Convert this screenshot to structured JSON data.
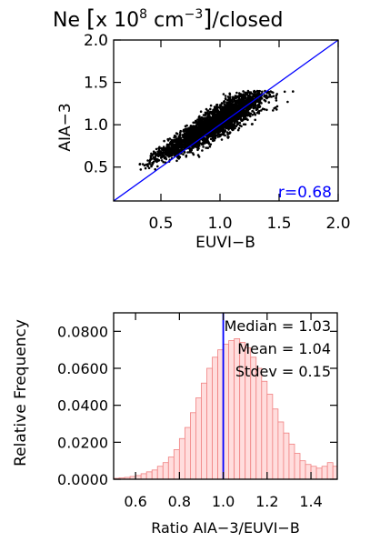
{
  "chart_data": [
    {
      "type": "scatter",
      "title": {
        "prefix": "Ne ",
        "bracket_left": "[",
        "unit": "x 10",
        "exp": "8",
        "unit2": " cm",
        "exp2": "−3",
        "bracket_right": "]",
        "suffix": "/closed"
      },
      "xlabel": "EUVI−B",
      "ylabel": "AIA−3",
      "xlim": [
        0.1,
        2.0
      ],
      "ylim": [
        0.1,
        2.0
      ],
      "xticks": [
        "0.5",
        "1.0",
        "1.5",
        "2.0"
      ],
      "xtick_values": [
        0.5,
        1.0,
        1.5,
        2.0
      ],
      "yticks": [
        "0.5",
        "1.0",
        "1.5",
        "2.0"
      ],
      "ytick_values": [
        0.5,
        1.0,
        1.5,
        2.0
      ],
      "annotation": "r=0.68",
      "reference_line": "y=x",
      "cloud": {
        "x_mean": 0.95,
        "x_std": 0.22,
        "correlation": 0.68,
        "ratio_mean": 1.04,
        "ratio_std": 0.15,
        "y_max": 1.4
      },
      "colors": {
        "points": "#000000",
        "line": "#0000ff",
        "annotation": "#0000ff"
      }
    },
    {
      "type": "bar",
      "xlabel": "Ratio AIA−3/EUVI−B",
      "ylabel": "Relative Frequency",
      "xlim": [
        0.5,
        1.52
      ],
      "ylim": [
        0,
        0.09
      ],
      "xticks": [
        "0.6",
        "0.8",
        "1.0",
        "1.2",
        "1.4"
      ],
      "xtick_values": [
        0.6,
        0.8,
        1.0,
        1.2,
        1.4
      ],
      "yticks": [
        "0.0000",
        "0.0200",
        "0.0400",
        "0.0600",
        "0.0800"
      ],
      "ytick_values": [
        0.0,
        0.02,
        0.04,
        0.06,
        0.08
      ],
      "bin_width": 0.025,
      "bin_start": 0.5,
      "values": [
        0.0005,
        0.0008,
        0.001,
        0.0015,
        0.002,
        0.003,
        0.004,
        0.005,
        0.007,
        0.009,
        0.012,
        0.016,
        0.022,
        0.028,
        0.036,
        0.044,
        0.052,
        0.06,
        0.066,
        0.07,
        0.073,
        0.075,
        0.076,
        0.074,
        0.071,
        0.066,
        0.06,
        0.053,
        0.046,
        0.038,
        0.031,
        0.025,
        0.019,
        0.014,
        0.01,
        0.008,
        0.007,
        0.006,
        0.007,
        0.009,
        0.007
      ],
      "median_line": 1.0,
      "stats": [
        {
          "label": "Median",
          "eq": "=",
          "value": "1.03"
        },
        {
          "label": "Mean",
          "eq": "=",
          "value": "1.04"
        },
        {
          "label": "Stdev",
          "eq": "=",
          "value": "0.15"
        }
      ],
      "colors": {
        "bar_fill": "#ffdddd",
        "bar_edge": "#f08080",
        "median_line": "#0000ff",
        "stats": "#0000ff"
      }
    }
  ]
}
